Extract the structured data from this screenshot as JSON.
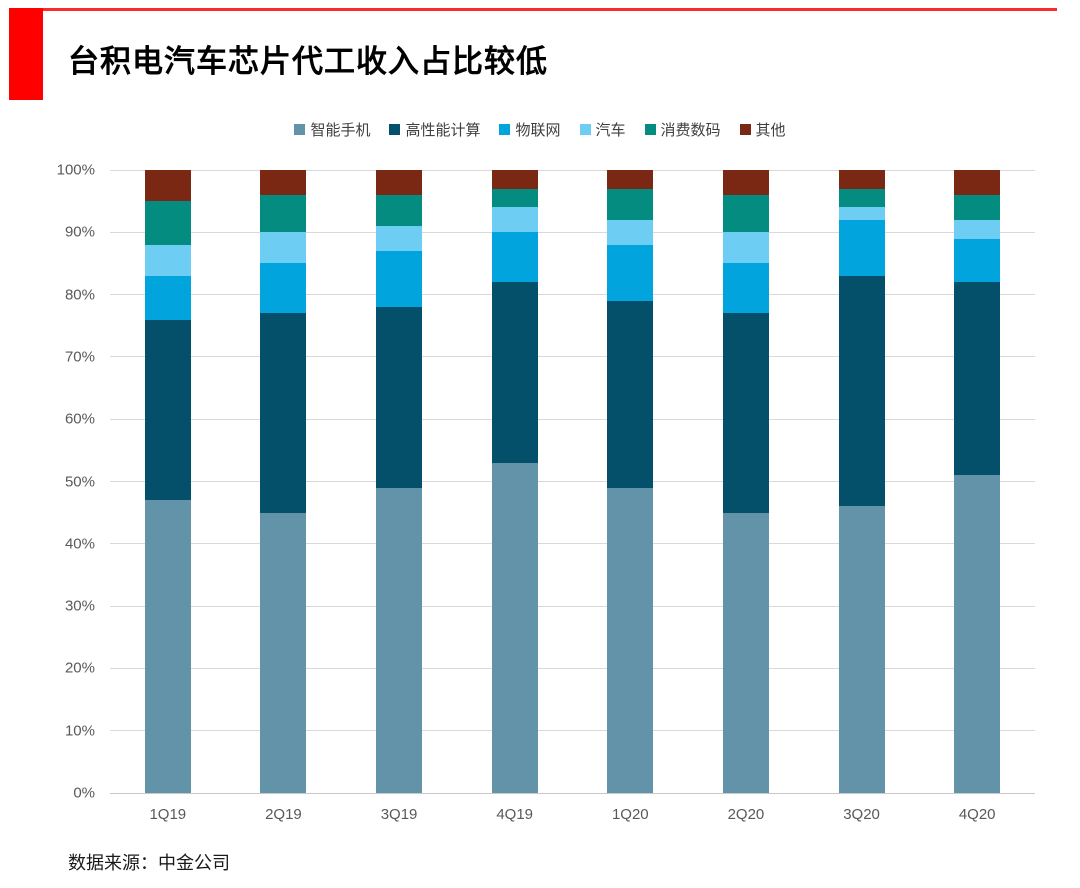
{
  "page": {
    "title": "台积电汽车芯片代工收入占比较低",
    "source_note": "数据来源：中金公司",
    "accent_color": "#FE0000"
  },
  "chart_data": {
    "type": "bar",
    "stacked": true,
    "units": "percent",
    "title": "台积电汽车芯片代工收入占比较低",
    "xlabel": "",
    "ylabel": "",
    "ylim": [
      0,
      100
    ],
    "y_ticks": [
      "0%",
      "10%",
      "20%",
      "30%",
      "40%",
      "50%",
      "60%",
      "70%",
      "80%",
      "90%",
      "100%"
    ],
    "grid": true,
    "legend_position": "top",
    "categories": [
      "1Q19",
      "2Q19",
      "3Q19",
      "4Q19",
      "1Q20",
      "2Q20",
      "3Q20",
      "4Q20"
    ],
    "series": [
      {
        "name": "智能手机",
        "color": "#6293A9",
        "values": [
          47,
          45,
          49,
          53,
          49,
          45,
          46,
          51
        ]
      },
      {
        "name": "高性能计算",
        "color": "#04506B",
        "values": [
          29,
          32,
          29,
          29,
          30,
          32,
          37,
          31
        ]
      },
      {
        "name": "物联网",
        "color": "#01A4DD",
        "values": [
          7,
          8,
          9,
          8,
          9,
          8,
          9,
          7
        ]
      },
      {
        "name": "汽车",
        "color": "#6DCDF3",
        "values": [
          5,
          5,
          4,
          4,
          4,
          5,
          2,
          3
        ]
      },
      {
        "name": "消费数码",
        "color": "#058C80",
        "values": [
          7,
          6,
          5,
          3,
          5,
          6,
          3,
          4
        ]
      },
      {
        "name": "其他",
        "color": "#7A2714",
        "values": [
          5,
          4,
          4,
          3,
          3,
          4,
          3,
          4
        ]
      }
    ]
  }
}
